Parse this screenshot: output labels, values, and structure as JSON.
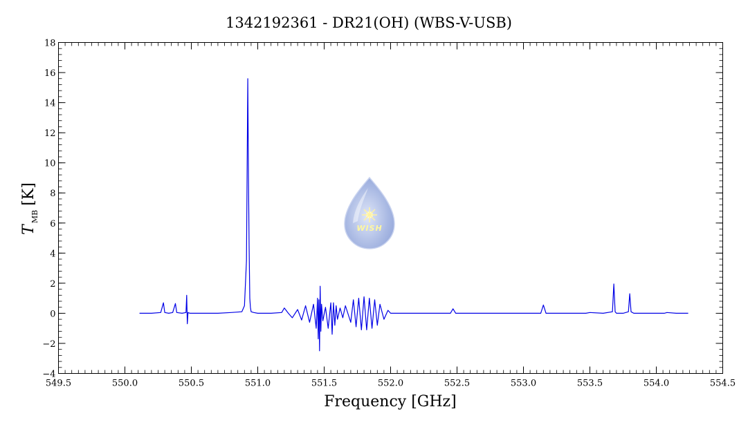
{
  "title": "1342192361 - DR21(OH) (WBS-V-USB)",
  "colors": {
    "line": "#0000e6",
    "axes": "#000000",
    "logo_fill": "#a9b9e3"
  },
  "logo": {
    "text": "WISH",
    "icon": "water-drop-star-logo"
  },
  "chart_data": {
    "type": "line",
    "title": "1342192361 - DR21(OH) (WBS-V-USB)",
    "xlabel": "Frequency [GHz]",
    "ylabel_main": "T",
    "ylabel_sub": "MB",
    "ylabel_unit": "[K]",
    "xlim": [
      549.5,
      554.5
    ],
    "ylim": [
      -4,
      18
    ],
    "x_ticks": [
      549.5,
      550.0,
      550.5,
      551.0,
      551.5,
      552.0,
      552.5,
      553.0,
      553.5,
      554.0,
      554.5
    ],
    "x_tick_labels": [
      "549.5",
      "550.0",
      "550.5",
      "551.0",
      "551.5",
      "552.0",
      "552.5",
      "553.0",
      "553.5",
      "554.0",
      "554.5"
    ],
    "y_ticks": [
      -4,
      -2,
      0,
      2,
      4,
      6,
      8,
      10,
      12,
      14,
      16,
      18
    ],
    "y_tick_labels": [
      "−4",
      "−2",
      "0",
      "2",
      "4",
      "6",
      "8",
      "10",
      "12",
      "14",
      "16",
      "18"
    ],
    "grid": false,
    "series": [
      {
        "x": [
          550.11,
          550.2,
          550.27,
          550.29,
          550.3,
          550.33,
          550.36,
          550.38,
          550.39,
          550.43,
          550.46,
          550.465,
          550.47,
          550.475,
          550.49,
          550.6,
          550.7,
          550.8,
          550.88,
          550.9,
          550.915,
          550.925,
          550.93,
          550.935,
          550.94,
          550.945,
          550.95,
          550.97,
          551.0,
          551.1,
          551.18,
          551.2,
          551.23,
          551.26,
          551.3,
          551.33,
          551.36,
          551.39,
          551.42,
          551.44,
          551.45,
          551.455,
          551.46,
          551.465,
          551.47,
          551.475,
          551.48,
          551.49,
          551.51,
          551.53,
          551.55,
          551.56,
          551.57,
          551.58,
          551.59,
          551.6,
          551.62,
          551.64,
          551.66,
          551.7,
          551.72,
          551.74,
          551.76,
          551.78,
          551.8,
          551.82,
          551.84,
          551.86,
          551.88,
          551.9,
          551.92,
          551.95,
          551.98,
          552.0,
          552.1,
          552.2,
          552.3,
          552.45,
          552.47,
          552.49,
          552.6,
          552.8,
          553.0,
          553.13,
          553.15,
          553.17,
          553.3,
          553.47,
          553.5,
          553.6,
          553.67,
          553.68,
          553.69,
          553.7,
          553.75,
          553.79,
          553.8,
          553.81,
          553.83,
          553.9,
          554.0,
          554.06,
          554.08,
          554.15,
          554.24
        ],
        "y": [
          0.0,
          0.0,
          0.05,
          0.7,
          0.05,
          0.0,
          0.05,
          0.65,
          0.05,
          0.0,
          0.05,
          1.2,
          -0.7,
          0.05,
          0.0,
          0.0,
          0.0,
          0.05,
          0.1,
          0.5,
          3.5,
          15.6,
          9.0,
          4.5,
          1.0,
          0.4,
          0.1,
          0.05,
          0.0,
          0.0,
          0.05,
          0.35,
          0.0,
          -0.3,
          0.25,
          -0.45,
          0.5,
          -0.6,
          0.6,
          -1.0,
          1.0,
          -1.7,
          0.9,
          -2.5,
          1.8,
          -1.2,
          0.6,
          -0.5,
          0.4,
          -1.0,
          0.7,
          -1.4,
          0.7,
          -0.8,
          0.5,
          -0.4,
          0.35,
          -0.3,
          0.5,
          -0.6,
          0.9,
          -0.9,
          1.0,
          -1.1,
          1.1,
          -1.1,
          1.0,
          -1.0,
          0.9,
          -0.8,
          0.6,
          -0.4,
          0.2,
          0.0,
          0.0,
          0.0,
          0.0,
          0.0,
          0.3,
          0.0,
          0.0,
          0.0,
          0.0,
          0.0,
          0.55,
          0.0,
          0.0,
          0.0,
          0.05,
          0.0,
          0.1,
          1.95,
          0.1,
          0.0,
          0.0,
          0.1,
          1.3,
          0.1,
          0.0,
          0.0,
          0.0,
          0.0,
          0.05,
          0.0,
          0.0
        ]
      }
    ]
  }
}
